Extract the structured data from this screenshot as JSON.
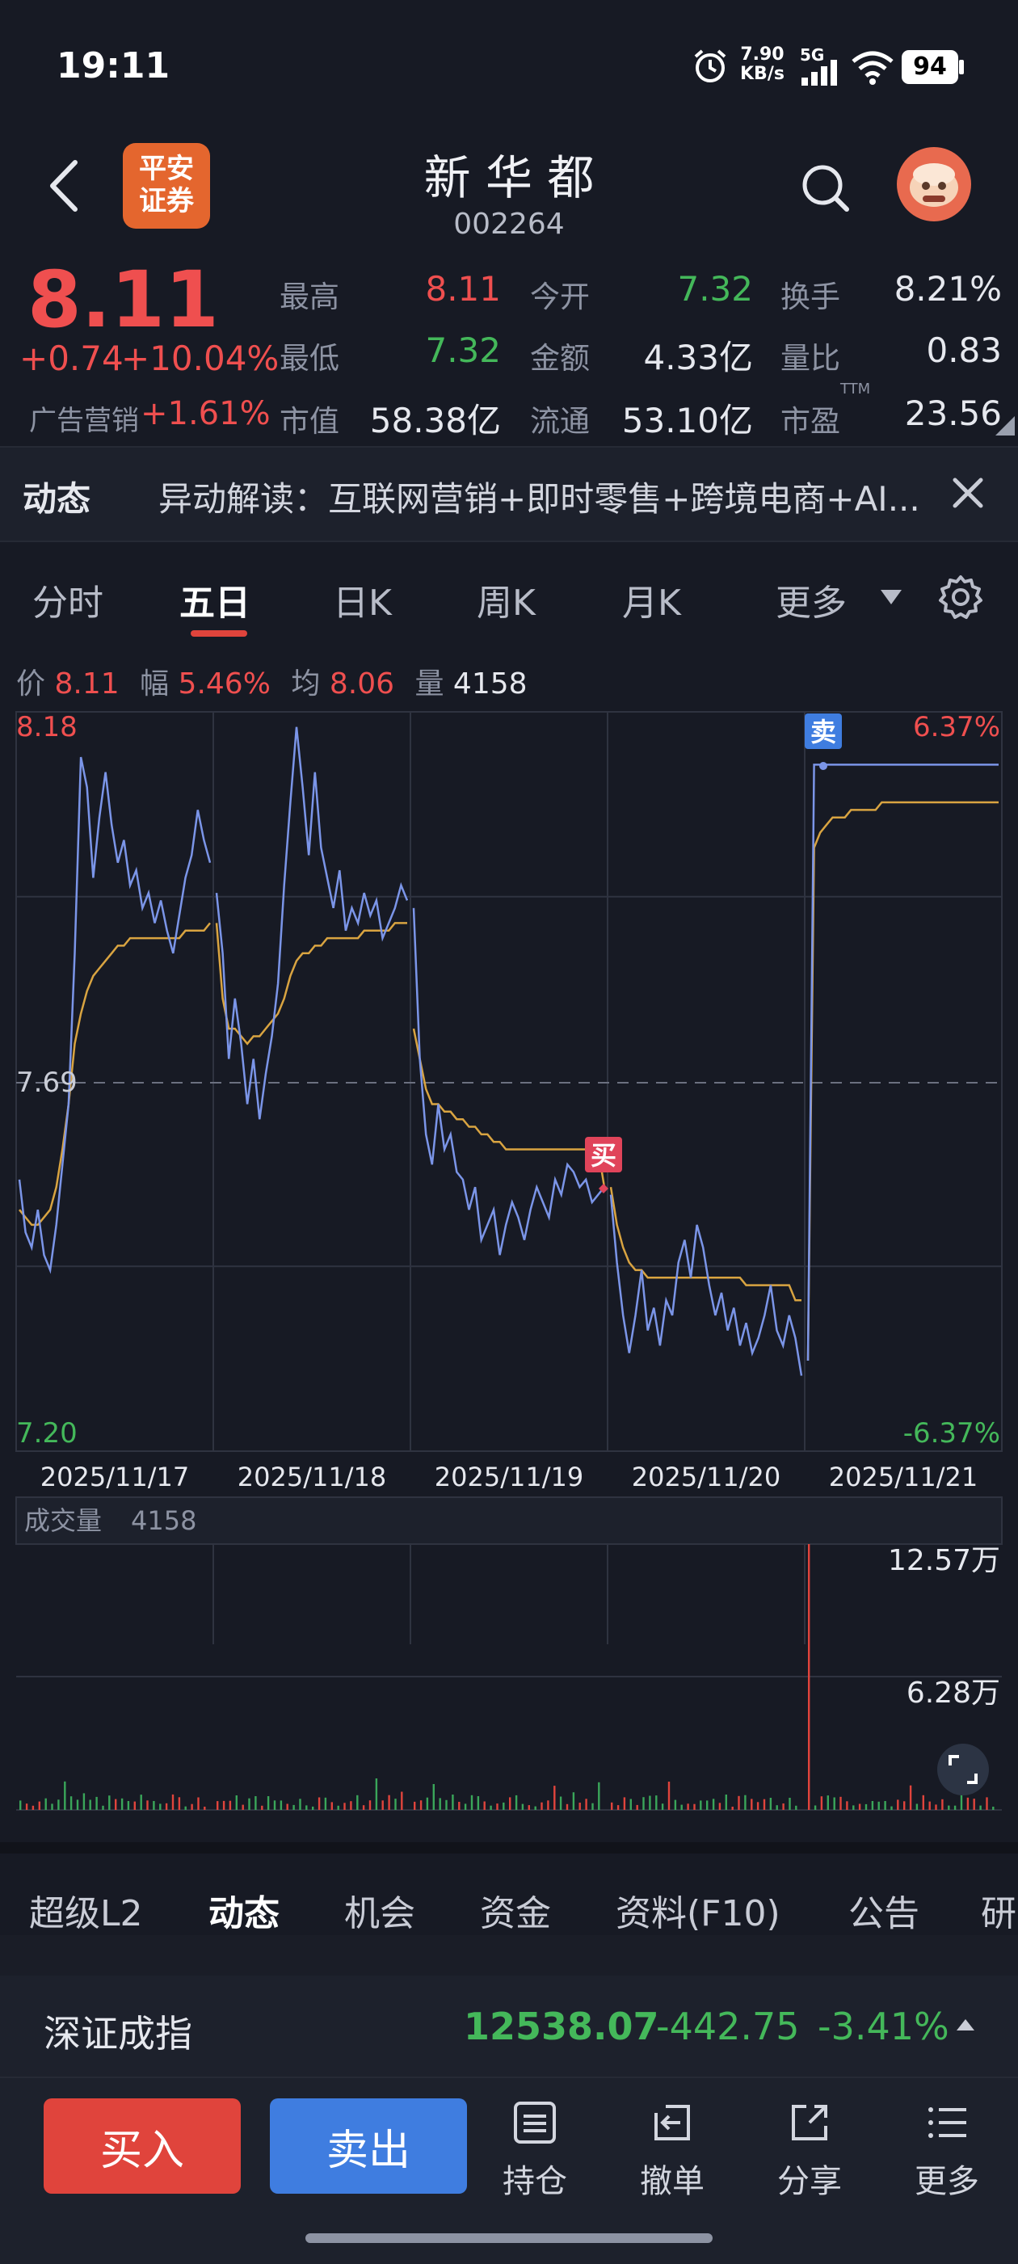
{
  "status_bar": {
    "time": "19:11",
    "net_speed_value": "7.90",
    "net_speed_unit": "KB/s",
    "signal_label": "5G",
    "battery": "94"
  },
  "header": {
    "broker_logo_line1": "平安",
    "broker_logo_line2": "证券",
    "stock_name": "新 华 都",
    "stock_code": "002264"
  },
  "quote": {
    "price": "8.11",
    "change": "+0.74",
    "change_pct": "+10.04%",
    "sector_name": "广告营销",
    "sector_change": "+1.61%",
    "rows": [
      [
        {
          "label": "最高",
          "value": "8.11",
          "tone": "red"
        },
        {
          "label": "今开",
          "value": "7.32",
          "tone": "green"
        },
        {
          "label": "换手",
          "value": "8.21%",
          "tone": "white"
        }
      ],
      [
        {
          "label": "最低",
          "value": "7.32",
          "tone": "green"
        },
        {
          "label": "金额",
          "value": "4.33亿",
          "tone": "white"
        },
        {
          "label": "量比",
          "value": "0.83",
          "tone": "white"
        }
      ],
      [
        {
          "label": "市值",
          "value": "58.38亿",
          "tone": "white"
        },
        {
          "label": "流通",
          "value": "53.10亿",
          "tone": "white"
        },
        {
          "label": "市盈",
          "value": "23.56",
          "tone": "white"
        }
      ]
    ],
    "pe_superscript": "TTM"
  },
  "news": {
    "label": "动态",
    "text": "异动解读：互联网营销+即时零售+跨境电商+AI..."
  },
  "chart_tabs": [
    "分时",
    "五日",
    "日K",
    "周K",
    "月K",
    "更多"
  ],
  "chart_tabs_active": 1,
  "chart_info": {
    "price_label": "价",
    "price": "8.11",
    "amp_label": "幅",
    "amp": "5.46%",
    "avg_label": "均",
    "avg": "8.06",
    "vol_label": "量",
    "vol": "4158"
  },
  "volume_panel": {
    "label": "成交量",
    "value": "4158",
    "ymax_label": "12.57万",
    "ymid_label": "6.28万"
  },
  "markers": {
    "sell": "卖",
    "buy": "买"
  },
  "chart_data": {
    "type": "line",
    "days": [
      "2025/11/17",
      "2025/11/18",
      "2025/11/19",
      "2025/11/20",
      "2025/11/21"
    ],
    "y_labels": {
      "top": "8.18",
      "mid": "7.69",
      "bottom": "7.20",
      "top_pct": "6.37%",
      "bottom_pct": "-6.37%"
    },
    "ylim": [
      7.2,
      8.18
    ],
    "prev_close": 7.69,
    "colors": {
      "price": "#7b95e8",
      "avg": "#d9a441",
      "vol_up": "#e0443c",
      "vol_down": "#3aa65a"
    },
    "series": [
      {
        "values": [
          7.56,
          7.49,
          7.47,
          7.52,
          7.46,
          7.44,
          7.5,
          7.58,
          7.66,
          7.86,
          8.12,
          8.08,
          7.96,
          8.04,
          8.1,
          8.03,
          7.98,
          8.01,
          7.95,
          7.97,
          7.92,
          7.94,
          7.9,
          7.93,
          7.89,
          7.86,
          7.91,
          7.96,
          7.99,
          8.05,
          8.01,
          7.98
        ],
        "avg": [
          7.52,
          7.51,
          7.5,
          7.5,
          7.51,
          7.52,
          7.55,
          7.6,
          7.66,
          7.74,
          7.78,
          7.81,
          7.83,
          7.84,
          7.85,
          7.86,
          7.87,
          7.87,
          7.88,
          7.88,
          7.88,
          7.88,
          7.88,
          7.88,
          7.88,
          7.88,
          7.88,
          7.89,
          7.89,
          7.89,
          7.89,
          7.9
        ]
      },
      {
        "values": [
          7.94,
          7.86,
          7.72,
          7.8,
          7.74,
          7.66,
          7.72,
          7.64,
          7.7,
          7.75,
          7.82,
          7.95,
          8.06,
          8.16,
          8.08,
          7.99,
          8.1,
          8.0,
          7.96,
          7.92,
          7.97,
          7.89,
          7.92,
          7.9,
          7.94,
          7.91,
          7.93,
          7.88,
          7.9,
          7.92,
          7.95,
          7.93
        ],
        "avg": [
          7.9,
          7.8,
          7.76,
          7.76,
          7.75,
          7.74,
          7.75,
          7.75,
          7.76,
          7.77,
          7.78,
          7.8,
          7.83,
          7.85,
          7.86,
          7.86,
          7.87,
          7.87,
          7.88,
          7.88,
          7.88,
          7.88,
          7.88,
          7.88,
          7.89,
          7.89,
          7.89,
          7.89,
          7.89,
          7.9,
          7.9,
          7.9
        ]
      },
      {
        "values": [
          7.92,
          7.72,
          7.62,
          7.58,
          7.66,
          7.6,
          7.62,
          7.57,
          7.56,
          7.52,
          7.55,
          7.48,
          7.5,
          7.52,
          7.46,
          7.5,
          7.53,
          7.51,
          7.48,
          7.52,
          7.55,
          7.53,
          7.51,
          7.56,
          7.54,
          7.58,
          7.57,
          7.55,
          7.56,
          7.53,
          7.54,
          7.55
        ],
        "avg": [
          7.76,
          7.72,
          7.68,
          7.66,
          7.66,
          7.65,
          7.65,
          7.64,
          7.64,
          7.63,
          7.63,
          7.62,
          7.62,
          7.61,
          7.61,
          7.6,
          7.6,
          7.6,
          7.6,
          7.6,
          7.6,
          7.6,
          7.6,
          7.6,
          7.6,
          7.6,
          7.6,
          7.6,
          7.6,
          7.6,
          7.6,
          7.55
        ]
      },
      {
        "values": [
          7.54,
          7.45,
          7.38,
          7.33,
          7.38,
          7.44,
          7.36,
          7.39,
          7.34,
          7.4,
          7.38,
          7.45,
          7.48,
          7.43,
          7.5,
          7.47,
          7.42,
          7.38,
          7.41,
          7.36,
          7.39,
          7.34,
          7.37,
          7.33,
          7.35,
          7.38,
          7.42,
          7.36,
          7.34,
          7.38,
          7.35,
          7.3
        ],
        "avg": [
          7.55,
          7.5,
          7.47,
          7.45,
          7.44,
          7.44,
          7.43,
          7.43,
          7.43,
          7.43,
          7.43,
          7.43,
          7.43,
          7.43,
          7.43,
          7.43,
          7.43,
          7.43,
          7.43,
          7.43,
          7.43,
          7.43,
          7.42,
          7.42,
          7.42,
          7.42,
          7.42,
          7.42,
          7.42,
          7.42,
          7.4,
          7.4
        ]
      },
      {
        "values": [
          7.32,
          8.11,
          8.11,
          8.11,
          8.11,
          8.11,
          8.11,
          8.11,
          8.11,
          8.11,
          8.11,
          8.11,
          8.11,
          8.11,
          8.11,
          8.11,
          8.11,
          8.11,
          8.11,
          8.11,
          8.11,
          8.11,
          8.11,
          8.11,
          8.11,
          8.11,
          8.11,
          8.11,
          8.11,
          8.11,
          8.11,
          8.11
        ],
        "avg": [
          7.32,
          8.0,
          8.02,
          8.03,
          8.04,
          8.04,
          8.04,
          8.05,
          8.05,
          8.05,
          8.05,
          8.05,
          8.06,
          8.06,
          8.06,
          8.06,
          8.06,
          8.06,
          8.06,
          8.06,
          8.06,
          8.06,
          8.06,
          8.06,
          8.06,
          8.06,
          8.06,
          8.06,
          8.06,
          8.06,
          8.06,
          8.06
        ]
      }
    ],
    "volume_ylim": [
      0,
      125700
    ],
    "volume_spike": {
      "day": 4,
      "index": 0,
      "value": 125700
    }
  },
  "bottom_tabs": [
    "超级L2",
    "动态",
    "机会",
    "资金",
    "资料(F10)",
    "公告",
    "研"
  ],
  "bottom_tabs_active": 1,
  "index": {
    "name": "深证成指",
    "value": "12538.07",
    "change": "-442.75",
    "change_pct": "-3.41%"
  },
  "actions": {
    "buy": "买入",
    "sell": "卖出",
    "items": [
      "持仓",
      "撤单",
      "分享",
      "更多"
    ]
  }
}
